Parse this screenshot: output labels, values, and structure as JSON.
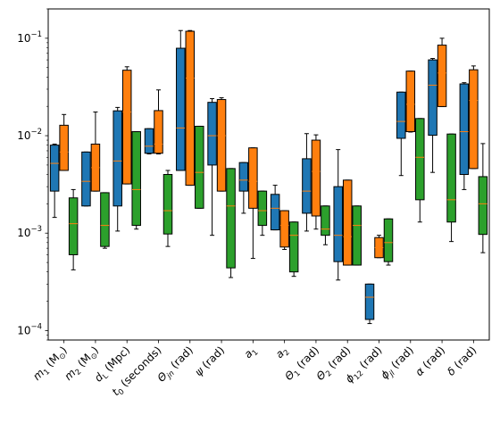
{
  "chart_data": {
    "type": "box",
    "title": "",
    "xlabel": "",
    "ylabel": "",
    "yscale": "log",
    "ylim": [
      8e-05,
      0.2
    ],
    "ytick_values": [
      0.0001,
      0.001,
      0.01,
      0.1
    ],
    "ytick_labels": [
      {
        "base": "10",
        "exp": "−4"
      },
      {
        "base": "10",
        "exp": "−3"
      },
      {
        "base": "10",
        "exp": "−2"
      },
      {
        "base": "10",
        "exp": "−1"
      }
    ],
    "categories": [
      {
        "main": "m",
        "sub": "1",
        "rest": " (M",
        "sun_sub": "⊙",
        "tail": ")"
      },
      {
        "main": "m",
        "sub": "2",
        "rest": " (M",
        "sun_sub": "⊙",
        "tail": ")"
      },
      {
        "main": "d",
        "sub": "L",
        "rest": " (Mpc)"
      },
      {
        "main": "t",
        "sub": "0",
        "rest": " (seconds)"
      },
      {
        "main": "Θ",
        "sub": "jn",
        "rest": " (rad)"
      },
      {
        "main": "ψ",
        "sub": "",
        "rest": " (rad)"
      },
      {
        "main": "a",
        "sub": "1",
        "rest": ""
      },
      {
        "main": "a",
        "sub": "2",
        "rest": ""
      },
      {
        "main": "Θ",
        "sub": "1",
        "rest": " (rad)"
      },
      {
        "main": "Θ",
        "sub": "2",
        "rest": " (rad)"
      },
      {
        "main": "ϕ",
        "sub": "12",
        "rest": " (rad)"
      },
      {
        "main": "ϕ",
        "sub": "jl",
        "rest": " (rad)"
      },
      {
        "main": "α",
        "sub": "",
        "rest": " (rad)"
      },
      {
        "main": "δ",
        "sub": "",
        "rest": " (rad)"
      }
    ],
    "series": [
      {
        "color": "#1f77b4",
        "boxes": [
          {
            "whislo": 0.00145,
            "q1": 0.0027,
            "med": 0.0052,
            "q3": 0.008,
            "whishi": 0.0082
          },
          {
            "whislo": 0.0019,
            "q1": 0.0019,
            "med": 0.0034,
            "q3": 0.0068,
            "whishi": 0.0068
          },
          {
            "whislo": 0.00105,
            "q1": 0.0019,
            "med": 0.0055,
            "q3": 0.018,
            "whishi": 0.0195
          },
          {
            "whislo": 0.0065,
            "q1": 0.0066,
            "med": 0.0078,
            "q3": 0.0118,
            "whishi": 0.0118
          },
          {
            "whislo": 0.0044,
            "q1": 0.0044,
            "med": 0.012,
            "q3": 0.079,
            "whishi": 0.12
          },
          {
            "whislo": 0.00095,
            "q1": 0.005,
            "med": 0.01,
            "q3": 0.022,
            "whishi": 0.024
          },
          {
            "whislo": 0.0016,
            "q1": 0.0027,
            "med": 0.0035,
            "q3": 0.0053,
            "whishi": 0.0053
          },
          {
            "whislo": 0.00108,
            "q1": 0.00108,
            "med": 0.0018,
            "q3": 0.0025,
            "whishi": 0.0031
          },
          {
            "whislo": 0.00105,
            "q1": 0.0016,
            "med": 0.0027,
            "q3": 0.0058,
            "whishi": 0.0105
          },
          {
            "whislo": 0.00033,
            "q1": 0.00051,
            "med": 0.00095,
            "q3": 0.003,
            "whishi": 0.0072
          },
          {
            "whislo": 0.000118,
            "q1": 0.00013,
            "med": 0.00022,
            "q3": 0.0003,
            "whishi": 0.0003
          },
          {
            "whislo": 0.0039,
            "q1": 0.0094,
            "med": 0.014,
            "q3": 0.028,
            "whishi": 0.028
          },
          {
            "whislo": 0.0042,
            "q1": 0.0101,
            "med": 0.033,
            "q3": 0.06,
            "whishi": 0.062
          },
          {
            "whislo": 0.0028,
            "q1": 0.004,
            "med": 0.011,
            "q3": 0.034,
            "whishi": 0.035
          }
        ]
      },
      {
        "color": "#ff7f0e",
        "boxes": [
          {
            "whislo": 0.0044,
            "q1": 0.0044,
            "med": 0.0068,
            "q3": 0.0128,
            "whishi": 0.0165
          },
          {
            "whislo": 0.0027,
            "q1": 0.0027,
            "med": 0.0047,
            "q3": 0.0082,
            "whishi": 0.0175
          },
          {
            "whislo": 0.0032,
            "q1": 0.0032,
            "med": 0.0175,
            "q3": 0.047,
            "whishi": 0.051
          },
          {
            "whislo": 0.0065,
            "q1": 0.0066,
            "med": 0.0082,
            "q3": 0.0181,
            "whishi": 0.0295
          },
          {
            "whislo": 0.0031,
            "q1": 0.0031,
            "med": 0.039,
            "q3": 0.118,
            "whishi": 0.12
          },
          {
            "whislo": 0.0027,
            "q1": 0.0027,
            "med": 0.01,
            "q3": 0.0235,
            "whishi": 0.0245
          },
          {
            "whislo": 0.00055,
            "q1": 0.0018,
            "med": 0.0034,
            "q3": 0.0075,
            "whishi": 0.0075
          },
          {
            "whislo": 0.00068,
            "q1": 0.00072,
            "med": 0.0012,
            "q3": 0.0017,
            "whishi": 0.0017
          },
          {
            "whislo": 0.0011,
            "q1": 0.0015,
            "med": 0.0043,
            "q3": 0.009,
            "whishi": 0.0102
          },
          {
            "whislo": 0.00047,
            "q1": 0.00047,
            "med": 0.00092,
            "q3": 0.0035,
            "whishi": 0.0035
          },
          {
            "whislo": 0.00056,
            "q1": 0.00056,
            "med": 0.00071,
            "q3": 0.0009,
            "whishi": 0.00095
          },
          {
            "whislo": 0.0109,
            "q1": 0.011,
            "med": 0.021,
            "q3": 0.046,
            "whishi": 0.046
          },
          {
            "whislo": 0.0199,
            "q1": 0.0199,
            "med": 0.044,
            "q3": 0.085,
            "whishi": 0.1
          },
          {
            "whislo": 0.0046,
            "q1": 0.0046,
            "med": 0.023,
            "q3": 0.0475,
            "whishi": 0.052
          }
        ]
      },
      {
        "color": "#2ca02c",
        "boxes": [
          {
            "whislo": 0.00042,
            "q1": 0.0006,
            "med": 0.00125,
            "q3": 0.0023,
            "whishi": 0.0028
          },
          {
            "whislo": 0.0007,
            "q1": 0.00073,
            "med": 0.0012,
            "q3": 0.0026,
            "whishi": 0.0026
          },
          {
            "whislo": 0.0011,
            "q1": 0.0012,
            "med": 0.0028,
            "q3": 0.011,
            "whishi": 0.011
          },
          {
            "whislo": 0.00073,
            "q1": 0.00098,
            "med": 0.0017,
            "q3": 0.004,
            "whishi": 0.0044
          },
          {
            "whislo": 0.0018,
            "q1": 0.0018,
            "med": 0.0042,
            "q3": 0.0125,
            "whishi": 0.0125
          },
          {
            "whislo": 0.00035,
            "q1": 0.00044,
            "med": 0.0019,
            "q3": 0.0046,
            "whishi": 0.0046
          },
          {
            "whislo": 0.00095,
            "q1": 0.0012,
            "med": 0.0017,
            "q3": 0.0027,
            "whishi": 0.0027
          },
          {
            "whislo": 0.00036,
            "q1": 0.0004,
            "med": 0.00095,
            "q3": 0.0013,
            "whishi": 0.0013
          },
          {
            "whislo": 0.00076,
            "q1": 0.00095,
            "med": 0.0011,
            "q3": 0.0019,
            "whishi": 0.0019
          },
          {
            "whislo": 0.00047,
            "q1": 0.00047,
            "med": 0.0012,
            "q3": 0.0019,
            "whishi": 0.0019
          },
          {
            "whislo": 0.00047,
            "q1": 0.00051,
            "med": 0.0008,
            "q3": 0.0014,
            "whishi": 0.0014
          },
          {
            "whislo": 0.0013,
            "q1": 0.0022,
            "med": 0.006,
            "q3": 0.015,
            "whishi": 0.015
          },
          {
            "whislo": 0.00082,
            "q1": 0.0013,
            "med": 0.0022,
            "q3": 0.0104,
            "whishi": 0.0104
          },
          {
            "whislo": 0.00063,
            "q1": 0.00097,
            "med": 0.002,
            "q3": 0.0038,
            "whishi": 0.0083
          }
        ]
      }
    ],
    "median_color": "#ff7f0e",
    "grid": false,
    "legend": "none"
  }
}
